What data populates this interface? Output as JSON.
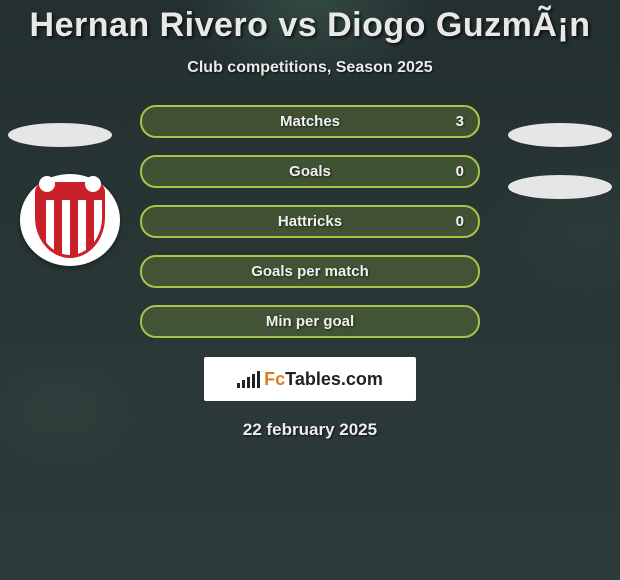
{
  "title": "Hernan Rivero vs Diogo GuzmÃ¡n",
  "subtitle": "Club competitions, Season 2025",
  "date": "22 february 2025",
  "colors": {
    "background": "#2a3a3a",
    "pill_border": "#a9c24a",
    "pill_fill": "rgba(115,140,55,0.35)",
    "title_text": "#e8e8e8",
    "text": "#f0f0f0",
    "ellipse": "#e6e6e6",
    "badge_red": "#c9202a",
    "badge_white": "#ffffff",
    "logo_orange": "#e07b1f"
  },
  "stats": [
    {
      "label": "Matches",
      "value": "3"
    },
    {
      "label": "Goals",
      "value": "0"
    },
    {
      "label": "Hattricks",
      "value": "0"
    },
    {
      "label": "Goals per match",
      "value": ""
    },
    {
      "label": "Min per goal",
      "value": ""
    }
  ],
  "logo": {
    "prefix": "Fc",
    "main": "Tables",
    "suffix": ".com"
  }
}
